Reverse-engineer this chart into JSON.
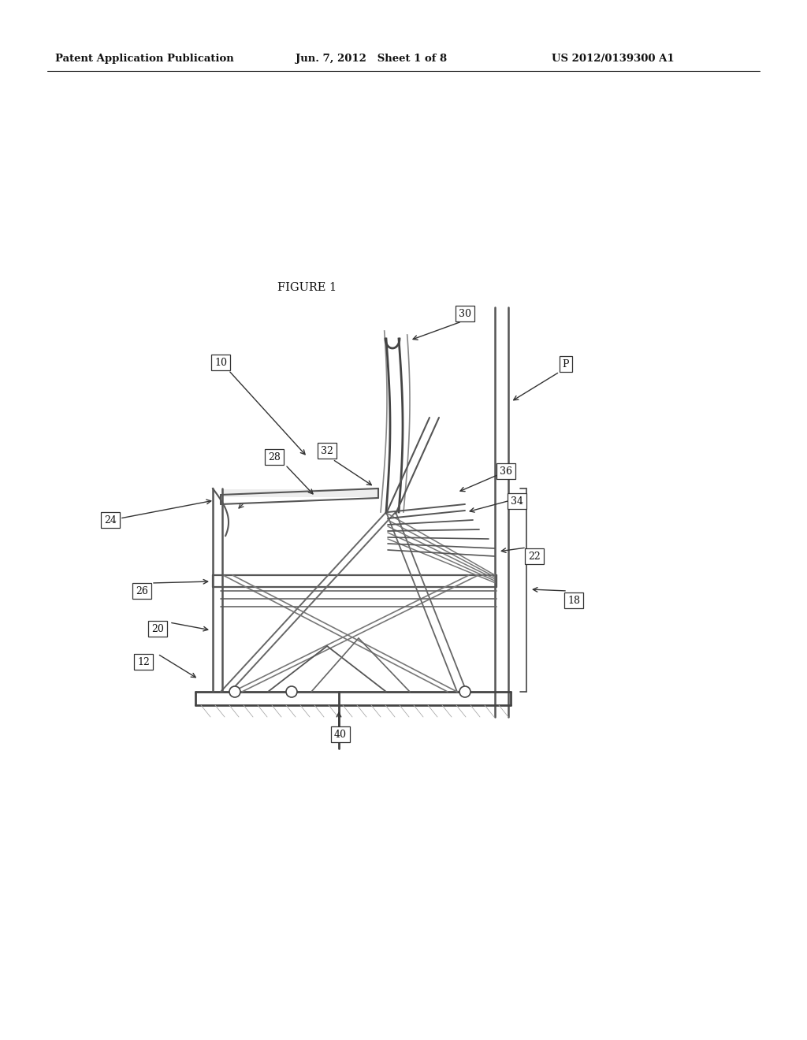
{
  "bg_color": "#ffffff",
  "header_text": "Patent Application Publication",
  "header_date": "Jun. 7, 2012   Sheet 1 of 8",
  "header_patent": "US 2012/0139300 A1",
  "figure_title": "FIGURE 1",
  "label_fontsize": 9,
  "header_fontsize": 9.5,
  "title_fontsize": 10.5,
  "line_color": "#666666"
}
